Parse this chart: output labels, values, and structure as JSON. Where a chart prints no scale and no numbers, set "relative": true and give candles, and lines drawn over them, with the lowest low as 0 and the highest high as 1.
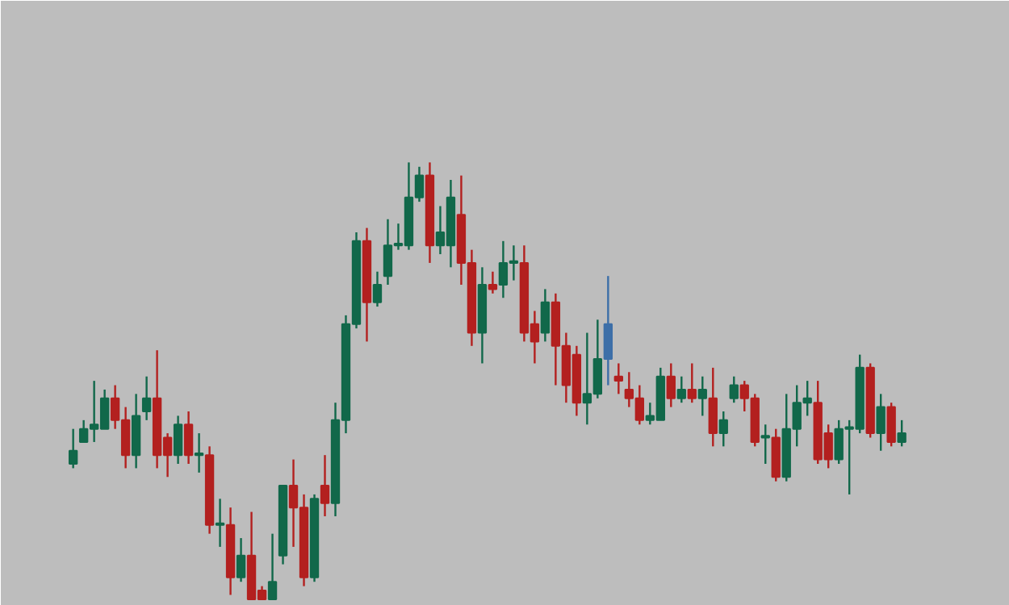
{
  "chart_data": {
    "type": "candlestick",
    "relative": true,
    "categories": [
      null,
      null,
      null,
      null,
      null,
      null,
      null,
      null,
      null,
      null,
      null,
      null,
      null,
      null,
      null,
      null,
      null,
      null,
      null,
      null,
      null,
      null,
      null,
      null,
      null,
      null,
      null,
      null,
      null,
      null,
      null,
      null,
      null,
      null,
      null,
      null,
      null,
      null,
      null,
      null,
      null,
      null,
      null,
      null,
      null,
      null,
      null,
      null,
      null,
      null,
      null,
      null,
      null,
      null,
      null,
      null,
      null,
      null,
      null,
      null,
      null,
      null,
      null,
      null,
      null,
      null,
      null,
      null,
      null,
      null,
      null,
      null,
      null,
      null,
      null,
      null,
      null,
      null,
      null,
      null
    ],
    "ohlc": [
      [
        0.31,
        0.39,
        0.3,
        0.34
      ],
      [
        0.36,
        0.41,
        0.36,
        0.39
      ],
      [
        0.39,
        0.5,
        0.36,
        0.4
      ],
      [
        0.39,
        0.48,
        0.39,
        0.46
      ],
      [
        0.46,
        0.49,
        0.39,
        0.41
      ],
      [
        0.41,
        0.44,
        0.3,
        0.33
      ],
      [
        0.33,
        0.47,
        0.3,
        0.42
      ],
      [
        0.43,
        0.51,
        0.41,
        0.46
      ],
      [
        0.46,
        0.57,
        0.3,
        0.33
      ],
      [
        0.37,
        0.38,
        0.28,
        0.33
      ],
      [
        0.33,
        0.42,
        0.31,
        0.4
      ],
      [
        0.4,
        0.43,
        0.31,
        0.33
      ],
      [
        0.33,
        0.38,
        0.29,
        0.33
      ],
      [
        0.33,
        0.35,
        0.15,
        0.17
      ],
      [
        0.17,
        0.23,
        0.12,
        0.17
      ],
      [
        0.17,
        0.21,
        0.01,
        0.05
      ],
      [
        0.05,
        0.14,
        0.04,
        0.1
      ],
      [
        0.1,
        0.2,
        0.0,
        0.0
      ],
      [
        0.02,
        0.03,
        0.0,
        0.0
      ],
      [
        0.0,
        0.15,
        0.0,
        0.04
      ],
      [
        0.1,
        0.26,
        0.08,
        0.26
      ],
      [
        0.26,
        0.32,
        0.12,
        0.21
      ],
      [
        0.21,
        0.24,
        0.03,
        0.05
      ],
      [
        0.05,
        0.24,
        0.04,
        0.23
      ],
      [
        0.26,
        0.33,
        0.19,
        0.22
      ],
      [
        0.22,
        0.45,
        0.19,
        0.41
      ],
      [
        0.41,
        0.65,
        0.38,
        0.63
      ],
      [
        0.63,
        0.84,
        0.62,
        0.82
      ],
      [
        0.82,
        0.85,
        0.59,
        0.68
      ],
      [
        0.68,
        0.75,
        0.67,
        0.72
      ],
      [
        0.74,
        0.87,
        0.72,
        0.81
      ],
      [
        0.81,
        0.86,
        0.8,
        0.81
      ],
      [
        0.81,
        1.0,
        0.8,
        0.92
      ],
      [
        0.92,
        0.99,
        0.91,
        0.97
      ],
      [
        0.97,
        1.0,
        0.77,
        0.81
      ],
      [
        0.81,
        0.9,
        0.79,
        0.84
      ],
      [
        0.81,
        0.96,
        0.76,
        0.92
      ],
      [
        0.88,
        0.97,
        0.72,
        0.77
      ],
      [
        0.77,
        0.8,
        0.58,
        0.61
      ],
      [
        0.61,
        0.76,
        0.54,
        0.72
      ],
      [
        0.72,
        0.75,
        0.7,
        0.71
      ],
      [
        0.72,
        0.82,
        0.69,
        0.77
      ],
      [
        0.77,
        0.81,
        0.73,
        0.77
      ],
      [
        0.77,
        0.81,
        0.59,
        0.61
      ],
      [
        0.63,
        0.66,
        0.54,
        0.59
      ],
      [
        0.61,
        0.71,
        0.59,
        0.68
      ],
      [
        0.68,
        0.7,
        0.49,
        0.58
      ],
      [
        0.58,
        0.61,
        0.45,
        0.49
      ],
      [
        0.56,
        0.58,
        0.42,
        0.45
      ],
      [
        0.45,
        0.61,
        0.4,
        0.47
      ],
      [
        0.47,
        0.64,
        0.46,
        0.55
      ],
      [
        0.55,
        0.74,
        0.49,
        0.63
      ],
      [
        0.51,
        0.54,
        0.47,
        0.5
      ],
      [
        0.48,
        0.52,
        0.44,
        0.46
      ],
      [
        0.46,
        0.49,
        0.4,
        0.41
      ],
      [
        0.41,
        0.45,
        0.4,
        0.42
      ],
      [
        0.41,
        0.53,
        0.41,
        0.51
      ],
      [
        0.51,
        0.54,
        0.44,
        0.46
      ],
      [
        0.46,
        0.51,
        0.45,
        0.48
      ],
      [
        0.48,
        0.54,
        0.45,
        0.46
      ],
      [
        0.46,
        0.51,
        0.42,
        0.48
      ],
      [
        0.46,
        0.53,
        0.35,
        0.38
      ],
      [
        0.38,
        0.43,
        0.35,
        0.41
      ],
      [
        0.46,
        0.51,
        0.45,
        0.49
      ],
      [
        0.49,
        0.5,
        0.43,
        0.46
      ],
      [
        0.46,
        0.47,
        0.35,
        0.36
      ],
      [
        0.37,
        0.4,
        0.31,
        0.37
      ],
      [
        0.37,
        0.39,
        0.27,
        0.28
      ],
      [
        0.28,
        0.47,
        0.27,
        0.39
      ],
      [
        0.39,
        0.49,
        0.35,
        0.45
      ],
      [
        0.45,
        0.5,
        0.42,
        0.46
      ],
      [
        0.45,
        0.5,
        0.31,
        0.32
      ],
      [
        0.38,
        0.4,
        0.3,
        0.32
      ],
      [
        0.32,
        0.41,
        0.31,
        0.39
      ],
      [
        0.39,
        0.41,
        0.24,
        0.39
      ],
      [
        0.39,
        0.56,
        0.38,
        0.53
      ],
      [
        0.53,
        0.54,
        0.37,
        0.38
      ],
      [
        0.38,
        0.47,
        0.34,
        0.44
      ],
      [
        0.44,
        0.45,
        0.35,
        0.36
      ],
      [
        0.36,
        0.41,
        0.35,
        0.38
      ]
    ],
    "colors": [
      "#11684a",
      "#11684a",
      "#11684a",
      "#11684a",
      "#b3201f",
      "#b3201f",
      "#11684a",
      "#11684a",
      "#b3201f",
      "#b3201f",
      "#11684a",
      "#b3201f",
      "#11684a",
      "#b3201f",
      "#11684a",
      "#b3201f",
      "#11684a",
      "#b3201f",
      "#b3201f",
      "#11684a",
      "#11684a",
      "#b3201f",
      "#b3201f",
      "#11684a",
      "#b3201f",
      "#11684a",
      "#11684a",
      "#11684a",
      "#b3201f",
      "#11684a",
      "#11684a",
      "#11684a",
      "#11684a",
      "#11684a",
      "#b3201f",
      "#11684a",
      "#11684a",
      "#b3201f",
      "#b3201f",
      "#11684a",
      "#b3201f",
      "#11684a",
      "#11684a",
      "#b3201f",
      "#b3201f",
      "#11684a",
      "#b3201f",
      "#b3201f",
      "#b3201f",
      "#11684a",
      "#11684a",
      "#3d6fa8",
      "#b3201f",
      "#b3201f",
      "#b3201f",
      "#11684a",
      "#11684a",
      "#b3201f",
      "#11684a",
      "#b3201f",
      "#11684a",
      "#b3201f",
      "#11684a",
      "#11684a",
      "#b3201f",
      "#b3201f",
      "#11684a",
      "#b3201f",
      "#11684a",
      "#11684a",
      "#11684a",
      "#b3201f",
      "#b3201f",
      "#11684a",
      "#11684a",
      "#11684a",
      "#b3201f",
      "#11684a",
      "#b3201f",
      "#11684a"
    ]
  }
}
